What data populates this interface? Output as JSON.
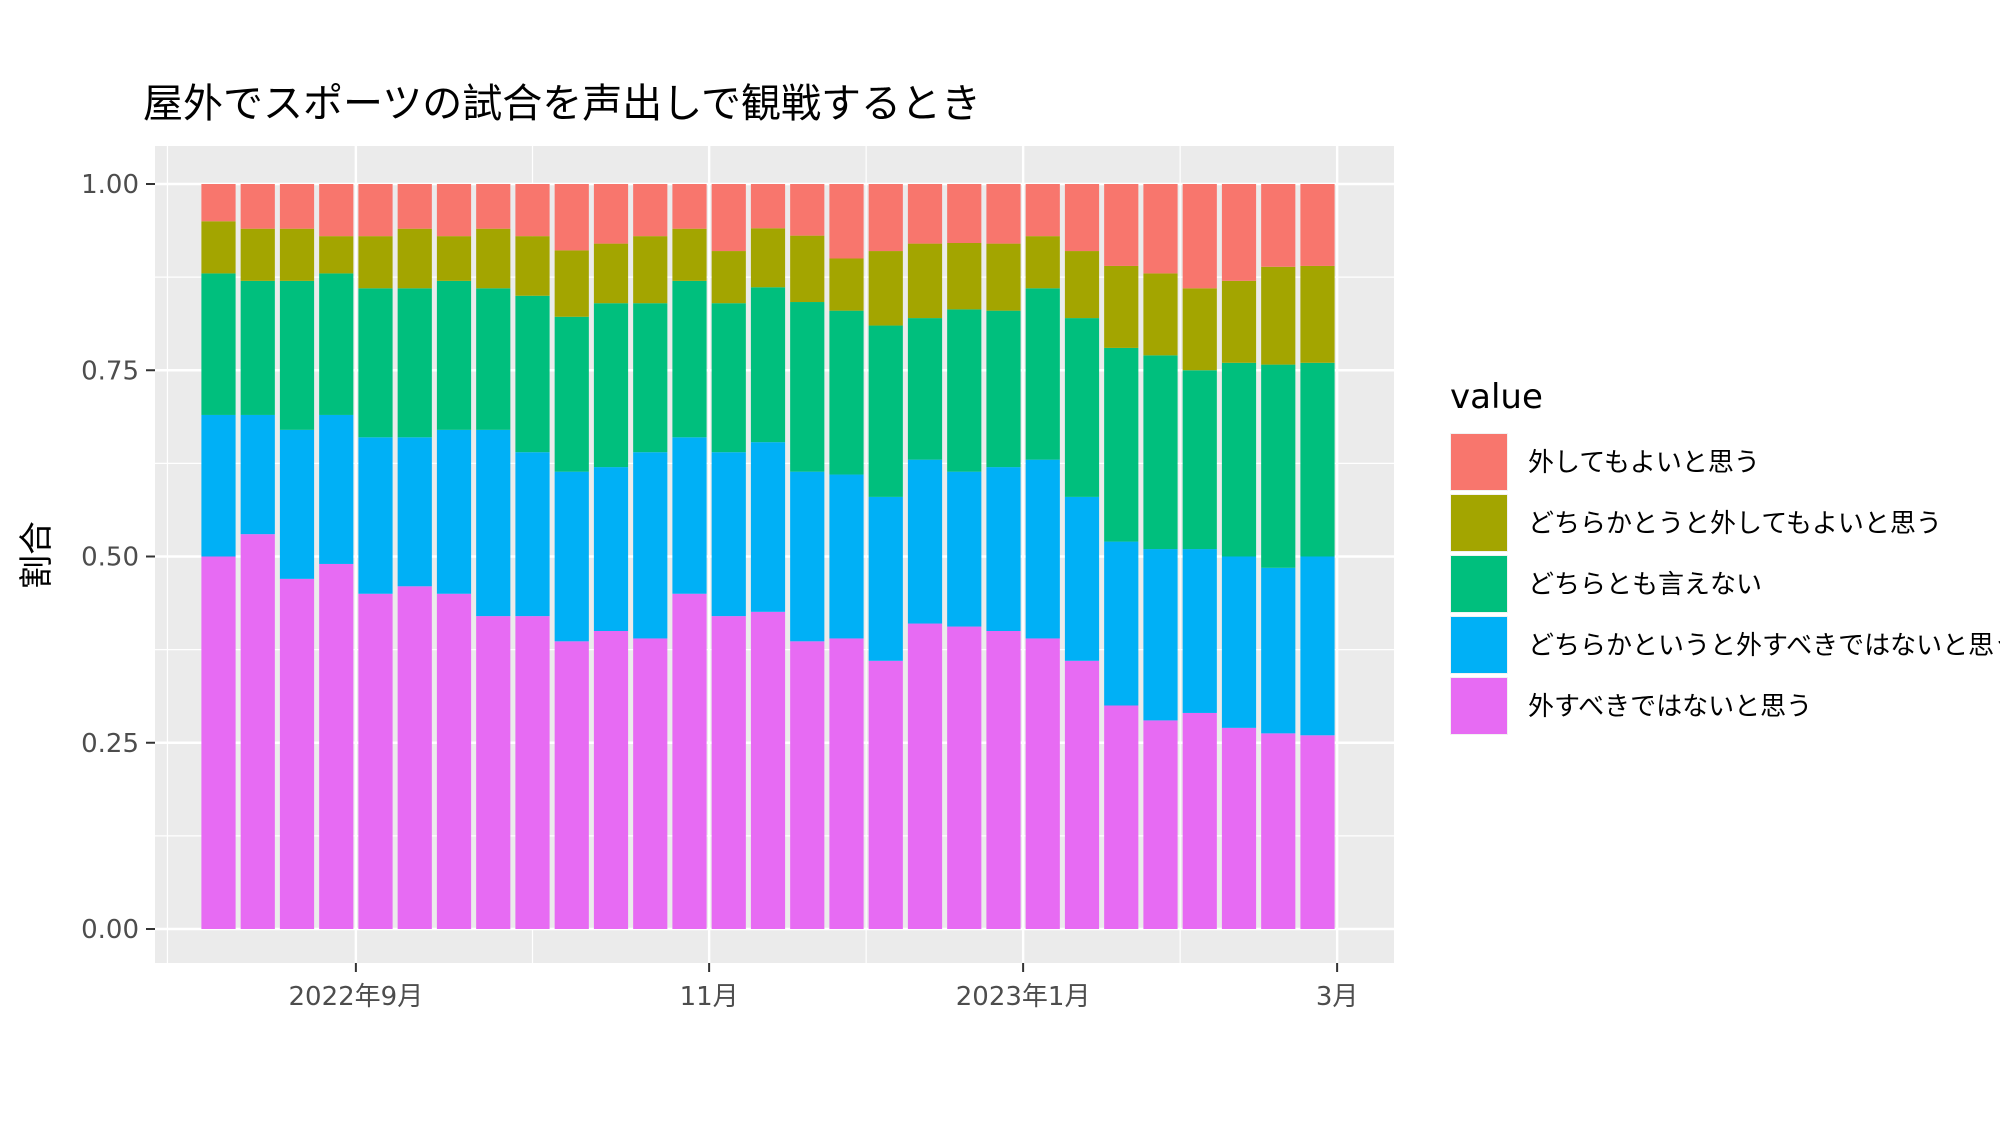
{
  "chart_data": {
    "type": "bar",
    "stacked": true,
    "title": "屋外でスポーツの試合を声出しで観戦するとき",
    "xlabel": "",
    "ylabel": "割合",
    "ylim": [
      0,
      1
    ],
    "y_ticks": [
      "0.00",
      "0.25",
      "0.50",
      "0.75",
      "1.00"
    ],
    "x_tick_labels": [
      {
        "label": "2022年9月",
        "bar_position": 3.5
      },
      {
        "label": "11月",
        "bar_position": 12.5
      },
      {
        "label": "2023年1月",
        "bar_position": 20.5
      },
      {
        "label": "3月",
        "bar_position": 28.5
      }
    ],
    "grid": true,
    "legend": {
      "title": "value",
      "placement": "right",
      "entries": [
        {
          "label": "外してもよいと思う",
          "color": "#F8766D"
        },
        {
          "label": "どちらかとうと外してもよいと思う",
          "color": "#A3A500"
        },
        {
          "label": "どちらとも言えない",
          "color": "#00BF7D"
        },
        {
          "label": "どちらかというと外すべきではないと思う",
          "color": "#00B0F6"
        },
        {
          "label": "外すべきではないと思う",
          "color": "#E76BF3"
        }
      ]
    },
    "bar_count": 29,
    "series": [
      {
        "name": "外すべきではないと思う",
        "color": "#E76BF3",
        "values": [
          0.5,
          0.53,
          0.47,
          0.49,
          0.45,
          0.46,
          0.45,
          0.42,
          0.42,
          0.39,
          0.4,
          0.39,
          0.45,
          0.42,
          0.43,
          0.39,
          0.39,
          0.36,
          0.41,
          0.41,
          0.4,
          0.39,
          0.36,
          0.3,
          0.28,
          0.29,
          0.27,
          0.26,
          0.26
        ]
      },
      {
        "name": "どちらかというと外すべきではないと思う",
        "color": "#00B0F6",
        "values": [
          0.19,
          0.16,
          0.2,
          0.2,
          0.21,
          0.2,
          0.22,
          0.25,
          0.22,
          0.23,
          0.22,
          0.25,
          0.21,
          0.22,
          0.23,
          0.23,
          0.22,
          0.22,
          0.22,
          0.21,
          0.22,
          0.24,
          0.22,
          0.22,
          0.23,
          0.22,
          0.23,
          0.22,
          0.24
        ]
      },
      {
        "name": "どちらとも言えない",
        "color": "#00BF7D",
        "values": [
          0.19,
          0.18,
          0.2,
          0.19,
          0.2,
          0.2,
          0.2,
          0.19,
          0.21,
          0.21,
          0.22,
          0.2,
          0.21,
          0.2,
          0.21,
          0.23,
          0.22,
          0.23,
          0.19,
          0.22,
          0.21,
          0.23,
          0.24,
          0.26,
          0.26,
          0.24,
          0.26,
          0.27,
          0.26
        ]
      },
      {
        "name": "どちらかとうと外してもよいと思う",
        "color": "#A3A500",
        "values": [
          0.07,
          0.07,
          0.07,
          0.05,
          0.07,
          0.08,
          0.06,
          0.08,
          0.08,
          0.09,
          0.08,
          0.09,
          0.07,
          0.07,
          0.08,
          0.09,
          0.07,
          0.1,
          0.1,
          0.09,
          0.09,
          0.07,
          0.09,
          0.11,
          0.11,
          0.11,
          0.11,
          0.13,
          0.13
        ]
      },
      {
        "name": "外してもよいと思う",
        "color": "#F8766D",
        "values": [
          0.05,
          0.06,
          0.06,
          0.07,
          0.07,
          0.06,
          0.07,
          0.06,
          0.07,
          0.09,
          0.08,
          0.07,
          0.06,
          0.09,
          0.06,
          0.07,
          0.1,
          0.09,
          0.08,
          0.08,
          0.08,
          0.07,
          0.09,
          0.11,
          0.12,
          0.14,
          0.13,
          0.11,
          0.11
        ]
      }
    ]
  }
}
